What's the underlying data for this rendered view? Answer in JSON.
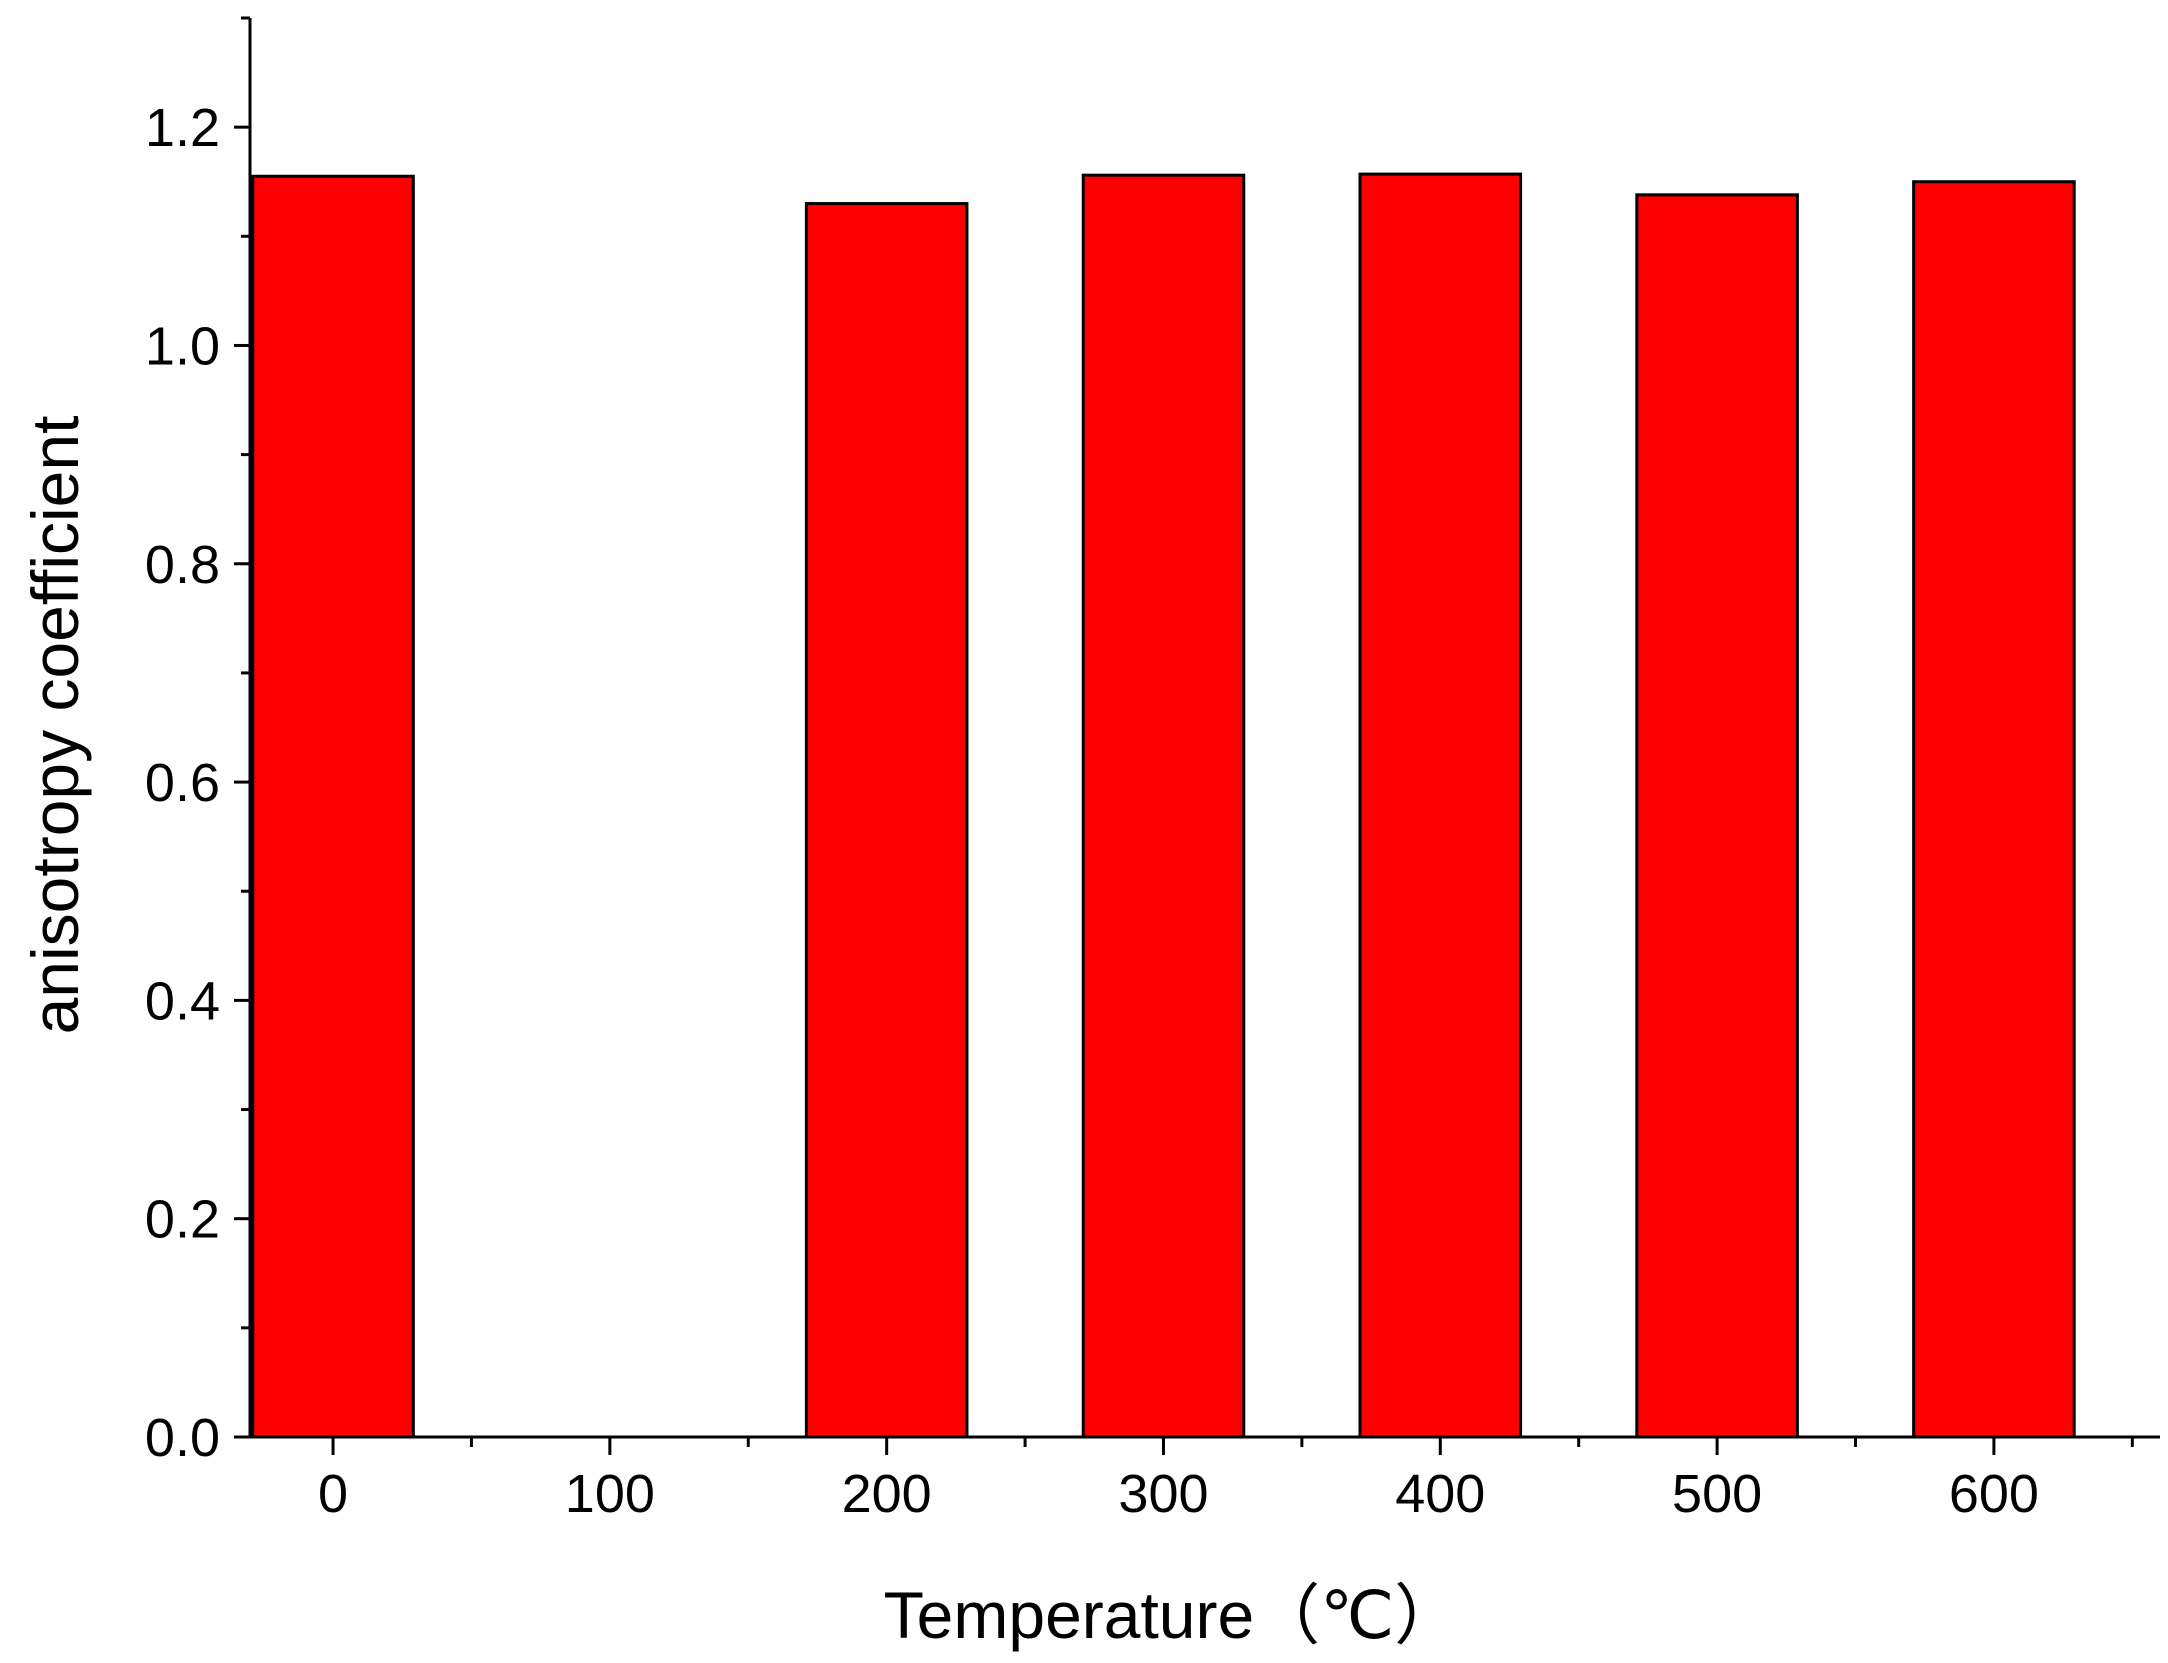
{
  "chart_data": {
    "type": "bar",
    "title": "",
    "xlabel": "Temperature（℃）",
    "ylabel": "anisotropy coefficient",
    "x": [
      0,
      200,
      300,
      400,
      500,
      600
    ],
    "values": [
      1.155,
      1.13,
      1.156,
      1.157,
      1.138,
      1.15
    ],
    "xlim": [
      -30,
      660
    ],
    "ylim": [
      0,
      1.3
    ],
    "x_ticks": [
      0,
      100,
      200,
      300,
      400,
      500,
      600
    ],
    "x_tick_labels": [
      "0",
      "100",
      "200",
      "300",
      "400",
      "500",
      "600"
    ],
    "y_ticks": [
      0,
      0.2,
      0.4,
      0.6,
      0.8,
      1.0,
      1.2
    ],
    "y_tick_labels": [
      "0.0",
      "0.2",
      "0.4",
      "0.6",
      "0.8",
      "1.0",
      "1.2"
    ],
    "bar_width": 58,
    "bar_color": "#ff0000",
    "edge_color": "#000000",
    "grid": false,
    "legend": "none"
  }
}
